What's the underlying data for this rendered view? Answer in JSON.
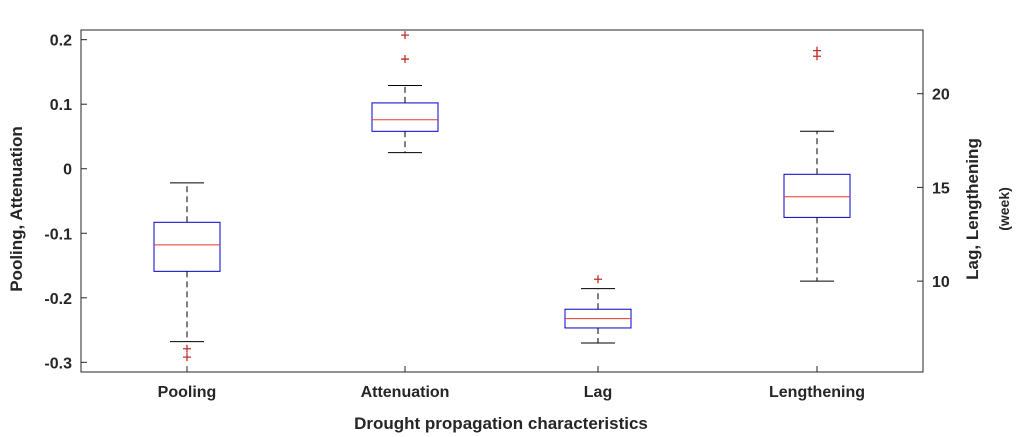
{
  "chart_data": {
    "type": "boxplot",
    "xlabel": "Drought propagation characteristics",
    "ylabel_left": "Pooling, Attenuation",
    "ylabel_right": "Lag, Lengthening",
    "ylabel_right_unit": "(week)",
    "ylim_left": [
      -0.315,
      0.215
    ],
    "ylim_right": [
      5.15,
      23.4
    ],
    "yticks_left": [
      "-0.3",
      "-0.2",
      "-0.1",
      "0",
      "0.1",
      "0.2"
    ],
    "yticks_left_values": [
      -0.3,
      -0.2,
      -0.1,
      0,
      0.1,
      0.2
    ],
    "yticks_right": [
      "10",
      "15",
      "20"
    ],
    "yticks_right_values": [
      10,
      15,
      20
    ],
    "categories": [
      "Pooling",
      "Attenuation",
      "Lag",
      "Lengthening"
    ],
    "grid": false,
    "colors": {
      "box": "#0000cc",
      "median": "#e8382c",
      "whisker": "#000000",
      "outlier": "#c0302a",
      "axis": "#262626"
    },
    "boxes": [
      {
        "category": "Pooling",
        "axis": "left",
        "whisker_low": -0.268,
        "q1": -0.159,
        "median": -0.118,
        "q3": -0.083,
        "whisker_high": -0.022,
        "outliers": [
          -0.279,
          -0.292
        ]
      },
      {
        "category": "Attenuation",
        "axis": "left",
        "whisker_low": 0.025,
        "q1": 0.058,
        "median": 0.076,
        "q3": 0.102,
        "whisker_high": 0.129,
        "outliers": [
          0.17,
          0.207
        ]
      },
      {
        "category": "Lag",
        "axis": "right",
        "whisker_low": 6.7,
        "q1": 7.5,
        "median": 8.0,
        "q3": 8.5,
        "whisker_high": 9.6,
        "outliers": [
          10.1
        ]
      },
      {
        "category": "Lengthening",
        "axis": "right",
        "whisker_low": 10.0,
        "q1": 13.4,
        "median": 14.5,
        "q3": 15.7,
        "whisker_high": 18.0,
        "outliers": [
          22.0,
          22.3
        ]
      }
    ]
  }
}
